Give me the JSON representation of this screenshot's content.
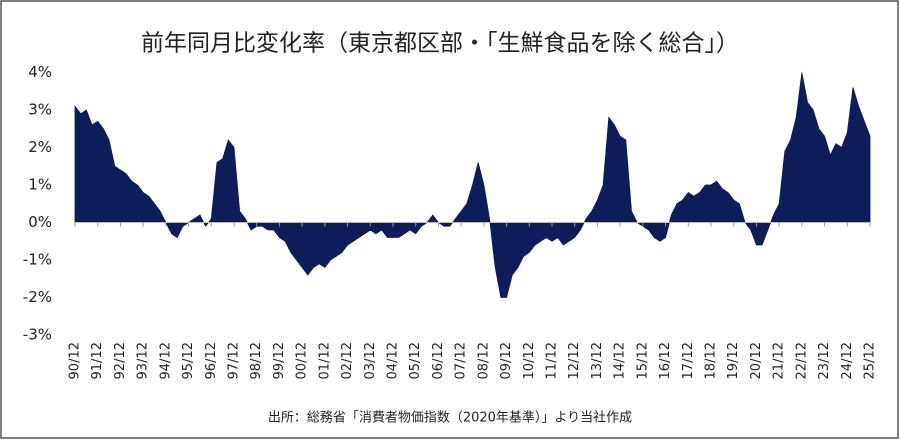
{
  "chart_data": {
    "type": "area",
    "title": "前年同月比変化率（東京都区部・「生鮮食品を除く総合」）",
    "source": "出所：総務省「消費者物価指数（2020年基準）」より当社作成",
    "categories": [
      "90/12",
      null,
      null,
      null,
      "91/12",
      null,
      null,
      null,
      "92/12",
      null,
      null,
      null,
      "93/12",
      null,
      null,
      null,
      "94/12",
      null,
      null,
      null,
      "95/12",
      null,
      null,
      null,
      "96/12",
      null,
      null,
      null,
      "97/12",
      null,
      null,
      null,
      "98/12",
      null,
      null,
      null,
      "99/12",
      null,
      null,
      null,
      "00/12",
      null,
      null,
      null,
      "01/12",
      null,
      null,
      null,
      "02/12",
      null,
      null,
      null,
      "03/12",
      null,
      null,
      null,
      "04/12",
      null,
      null,
      null,
      "05/12",
      null,
      null,
      null,
      "06/12",
      null,
      null,
      null,
      "07/12",
      null,
      null,
      null,
      "08/12",
      null,
      null,
      null,
      "09/12",
      null,
      null,
      null,
      "10/12",
      null,
      null,
      null,
      "11/12",
      null,
      null,
      null,
      "12/12",
      null,
      null,
      null,
      "13/12",
      null,
      null,
      null,
      "14/12",
      null,
      null,
      null,
      "15/12",
      null,
      null,
      null,
      "16/12",
      null,
      null,
      null,
      "17/12",
      null,
      null,
      null,
      "18/12",
      null,
      null,
      null,
      "19/12",
      null,
      null,
      null,
      "20/12",
      null,
      null,
      null,
      "21/12",
      null,
      null,
      null,
      "22/12",
      null,
      null,
      null,
      "23/12",
      null,
      null,
      null,
      "24/12",
      null,
      null,
      null,
      "25/12"
    ],
    "values": [
      3.1,
      2.9,
      3.0,
      2.6,
      2.7,
      2.5,
      2.2,
      1.5,
      1.4,
      1.3,
      1.1,
      1.0,
      0.8,
      0.7,
      0.5,
      0.3,
      0.0,
      -0.3,
      -0.4,
      -0.1,
      0.0,
      0.1,
      0.2,
      -0.1,
      0.1,
      1.6,
      1.7,
      2.2,
      2.0,
      0.3,
      0.1,
      -0.2,
      -0.1,
      -0.1,
      -0.2,
      -0.2,
      -0.4,
      -0.5,
      -0.8,
      -1.0,
      -1.2,
      -1.4,
      -1.2,
      -1.1,
      -1.2,
      -1.0,
      -0.9,
      -0.8,
      -0.6,
      -0.5,
      -0.4,
      -0.3,
      -0.2,
      -0.3,
      -0.2,
      -0.4,
      -0.4,
      -0.4,
      -0.3,
      -0.2,
      -0.3,
      -0.1,
      0.0,
      0.2,
      0.0,
      -0.1,
      -0.1,
      0.1,
      0.3,
      0.5,
      1.0,
      1.6,
      1.0,
      0.1,
      -1.2,
      -2.0,
      -2.0,
      -1.4,
      -1.2,
      -0.9,
      -0.8,
      -0.6,
      -0.5,
      -0.4,
      -0.5,
      -0.4,
      -0.6,
      -0.5,
      -0.4,
      -0.2,
      0.1,
      0.3,
      0.6,
      1.0,
      2.8,
      2.6,
      2.3,
      2.2,
      0.3,
      0.0,
      -0.1,
      -0.2,
      -0.4,
      -0.5,
      -0.4,
      0.2,
      0.5,
      0.6,
      0.8,
      0.7,
      0.8,
      1.0,
      1.0,
      1.1,
      0.9,
      0.8,
      0.6,
      0.5,
      0.0,
      -0.2,
      -0.6,
      -0.6,
      -0.2,
      0.2,
      0.5,
      1.9,
      2.2,
      2.8,
      4.0,
      3.2,
      3.0,
      2.5,
      2.3,
      1.8,
      2.1,
      2.0,
      2.4,
      3.6,
      3.1,
      2.7,
      2.3
    ],
    "color": "#0c1d5a",
    "ylim": [
      -3,
      4.2
    ],
    "yticks": [
      {
        "value": -3,
        "label": "-3%"
      },
      {
        "value": -2,
        "label": "-2%"
      },
      {
        "value": -1,
        "label": "-1%"
      },
      {
        "value": 0,
        "label": "0%"
      },
      {
        "value": 1,
        "label": "1%"
      },
      {
        "value": 2,
        "label": "2%"
      },
      {
        "value": 3,
        "label": "3%"
      },
      {
        "value": 4,
        "label": "4%"
      }
    ]
  }
}
